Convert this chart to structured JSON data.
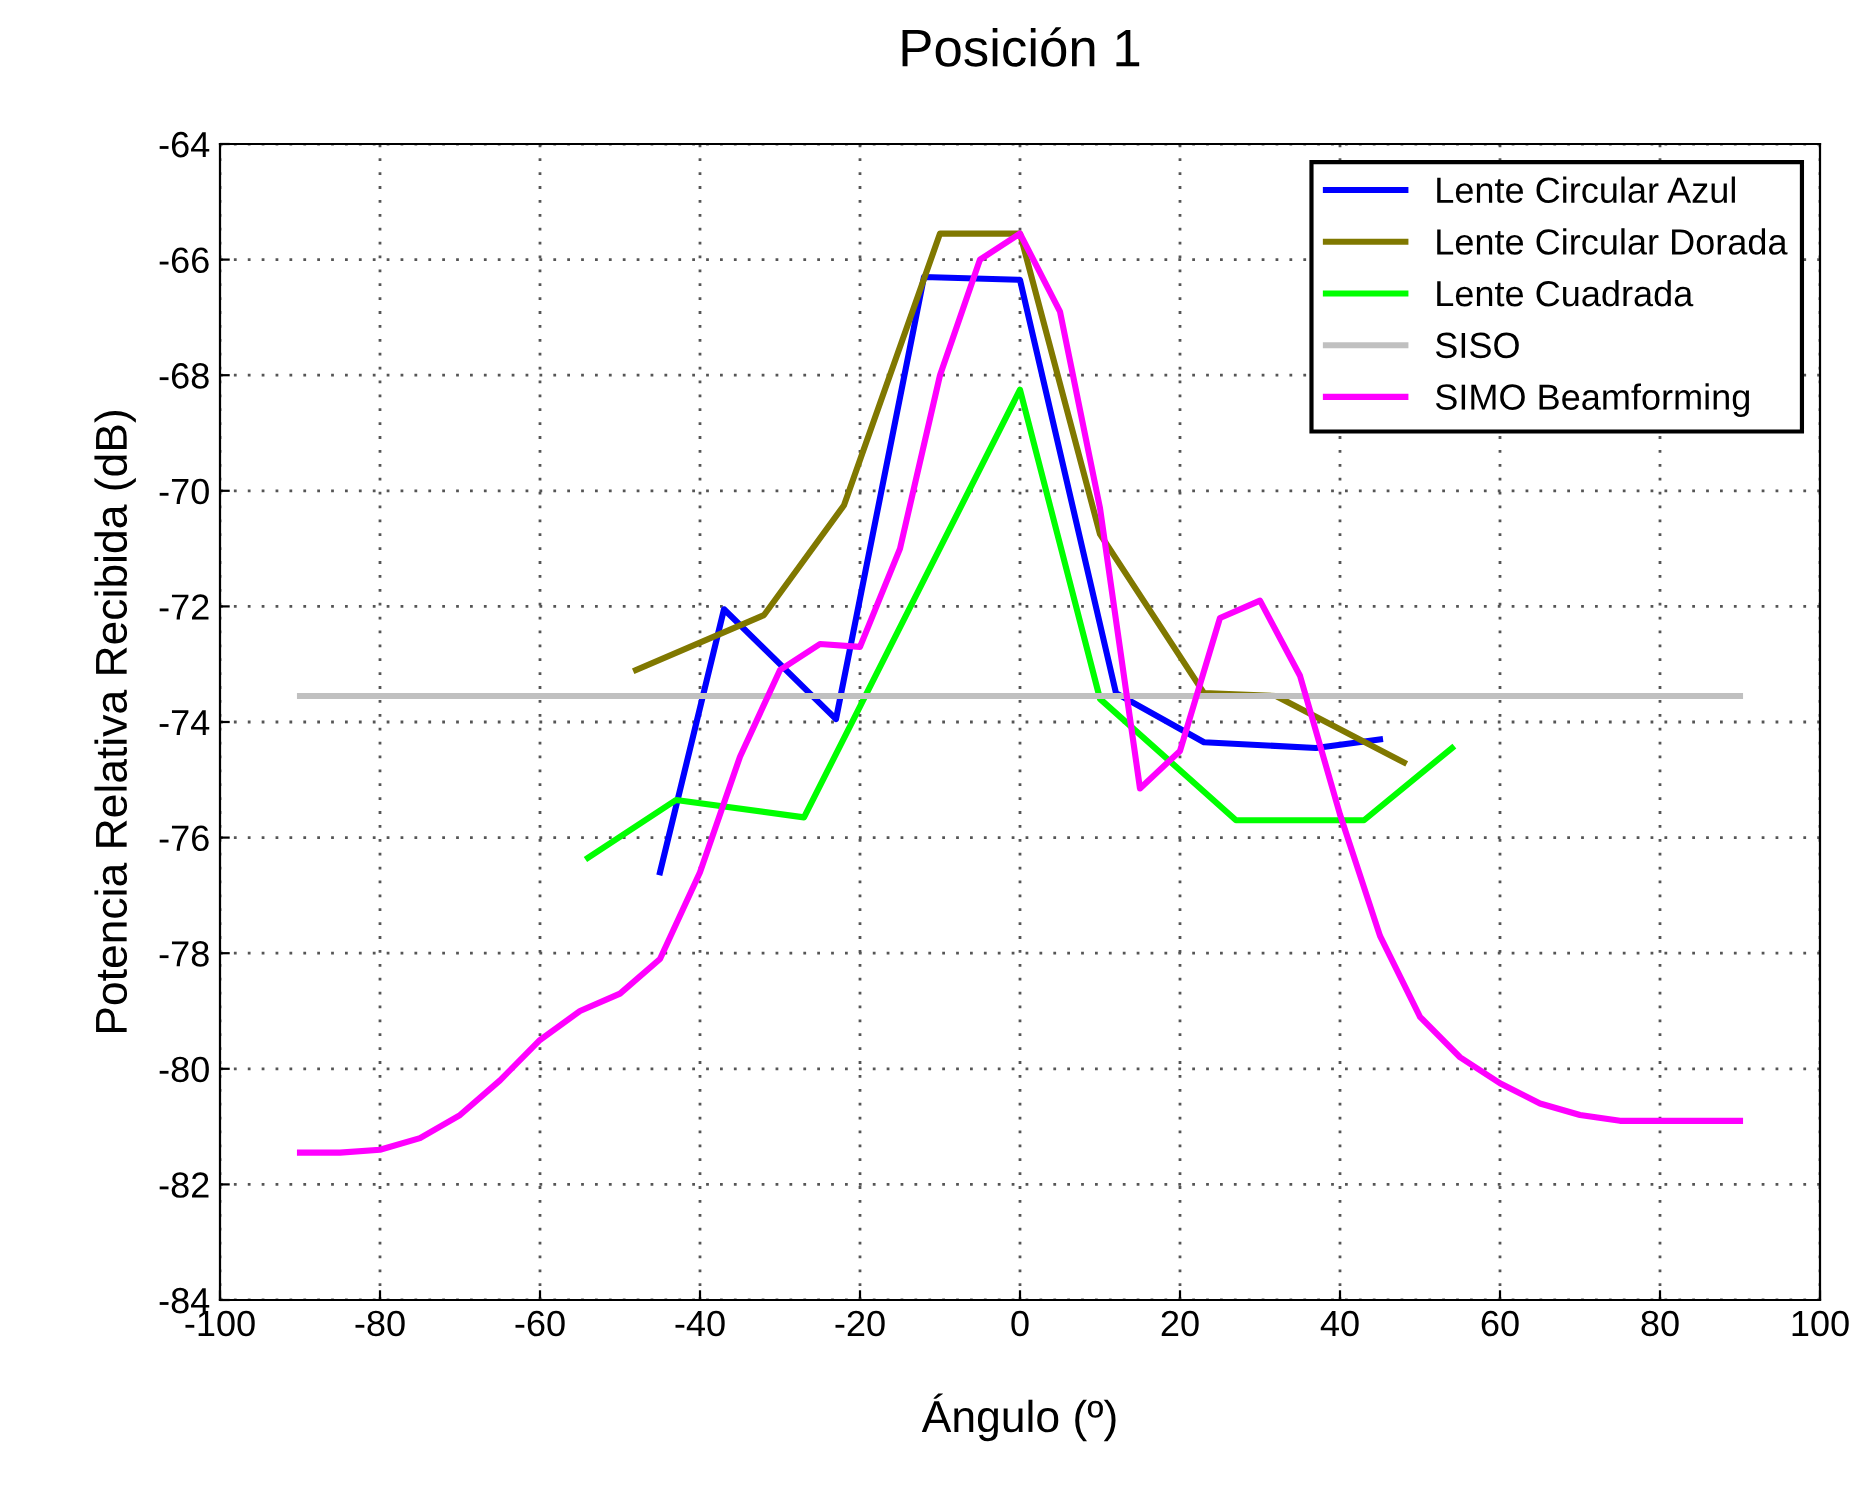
{
  "chart_data": {
    "type": "line",
    "title": "Posición 1",
    "xlabel": "Ángulo (º)",
    "ylabel": "Potencia Relativa Recibida (dB)",
    "xlim": [
      -100,
      100
    ],
    "xticks": [
      -100,
      -80,
      -60,
      -40,
      -20,
      0,
      20,
      40,
      60,
      80,
      100
    ],
    "ylim": [
      -84,
      -64
    ],
    "yticks": [
      -84,
      -82,
      -80,
      -78,
      -76,
      -74,
      -72,
      -70,
      -68,
      -66,
      -64
    ],
    "grid": true,
    "legend": "top right",
    "marker": "none",
    "line_style": "solid",
    "series": [
      {
        "name": "Lente Circular Azul",
        "color": "#0000ff",
        "x": [
          -45,
          -37,
          -23,
          -12,
          0,
          12,
          23,
          37,
          45
        ],
        "values": [
          -76.6,
          -72.05,
          -73.95,
          -66.3,
          -66.35,
          -73.5,
          -74.35,
          -74.45,
          -74.3
        ]
      },
      {
        "name": "Lente Circular Dorada",
        "color": "#807800",
        "x": [
          -48,
          -32,
          -22,
          -10,
          0,
          10,
          23,
          32,
          48
        ],
        "values": [
          -73.1,
          -72.15,
          -70.25,
          -65.55,
          -65.55,
          -70.75,
          -73.5,
          -73.55,
          -74.7
        ]
      },
      {
        "name": "Lente Cuadrada",
        "color": "#00ff00",
        "x": [
          -54,
          -43,
          -27,
          0,
          10,
          27,
          43,
          54
        ],
        "values": [
          -76.35,
          -75.35,
          -75.65,
          -68.25,
          -73.6,
          -75.7,
          -75.7,
          -74.45
        ]
      },
      {
        "name": "SISO",
        "color": "#c0c0c0",
        "x": [
          -90,
          90
        ],
        "values": [
          -73.55,
          -73.55
        ]
      },
      {
        "name": "SIMO Beamforming",
        "color": "#ff00ff",
        "x": [
          -90,
          -85,
          -80,
          -75,
          -70,
          -65,
          -60,
          -55,
          -50,
          -45,
          -40,
          -35,
          -30,
          -25,
          -20,
          -15,
          -10,
          -5,
          0,
          5,
          10,
          15,
          20,
          25,
          30,
          35,
          40,
          45,
          50,
          55,
          60,
          65,
          70,
          75,
          80,
          85,
          90
        ],
        "values": [
          -81.45,
          -81.45,
          -81.4,
          -81.2,
          -80.8,
          -80.2,
          -79.5,
          -79.0,
          -78.7,
          -78.1,
          -76.6,
          -74.6,
          -73.1,
          -72.65,
          -72.7,
          -71.0,
          -68.0,
          -66.0,
          -65.55,
          -66.9,
          -70.3,
          -75.15,
          -74.5,
          -72.2,
          -71.9,
          -73.2,
          -75.6,
          -77.7,
          -79.1,
          -79.8,
          -80.25,
          -80.6,
          -80.8,
          -80.9,
          -80.9,
          -80.9,
          -80.9
        ]
      }
    ]
  }
}
